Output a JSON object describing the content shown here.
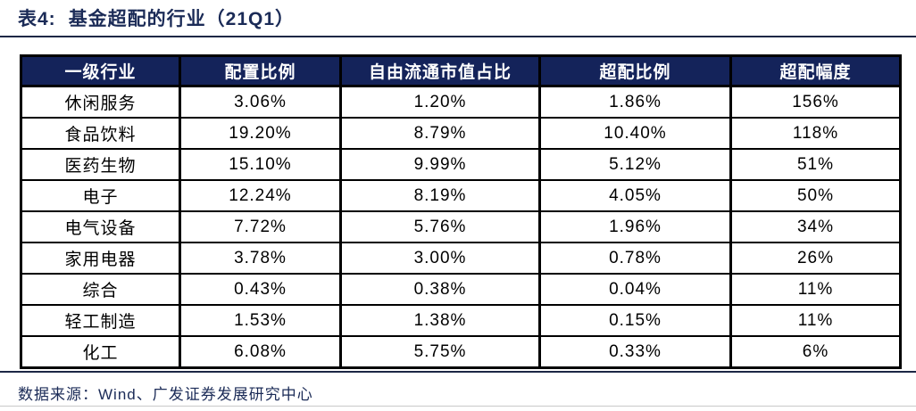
{
  "title": {
    "prefix": "表4:",
    "text": "基金超配的行业（21Q1）"
  },
  "table": {
    "columns": [
      "一级行业",
      "配置比例",
      "自由流通市值占比",
      "超配比例",
      "超配幅度"
    ],
    "rows": [
      [
        "休闲服务",
        "3.06%",
        "1.20%",
        "1.86%",
        "156%"
      ],
      [
        "食品饮料",
        "19.20%",
        "8.79%",
        "10.40%",
        "118%"
      ],
      [
        "医药生物",
        "15.10%",
        "9.99%",
        "5.12%",
        "51%"
      ],
      [
        "电子",
        "12.24%",
        "8.19%",
        "4.05%",
        "50%"
      ],
      [
        "电气设备",
        "7.72%",
        "5.76%",
        "1.96%",
        "34%"
      ],
      [
        "家用电器",
        "3.78%",
        "3.00%",
        "0.78%",
        "26%"
      ],
      [
        "综合",
        "0.43%",
        "0.38%",
        "0.04%",
        "11%"
      ],
      [
        "轻工制造",
        "1.53%",
        "1.38%",
        "0.15%",
        "11%"
      ],
      [
        "化工",
        "6.08%",
        "5.75%",
        "0.33%",
        "6%"
      ]
    ]
  },
  "footer": {
    "source": "数据来源：Wind、广发证券发展研究中心"
  },
  "colors": {
    "header_bg": "#14235A",
    "title_text": "#1B2B57",
    "border": "#000000",
    "bottom_rule": "#C9C9C9"
  }
}
